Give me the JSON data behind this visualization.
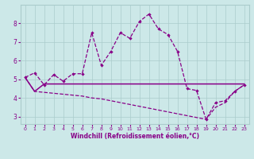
{
  "xlabel": "Windchill (Refroidissement éolien,°C)",
  "bg_color": "#cce8e8",
  "grid_color": "#aacccc",
  "line_color": "#880088",
  "x_ticks": [
    0,
    1,
    2,
    3,
    4,
    5,
    6,
    7,
    8,
    9,
    10,
    11,
    12,
    13,
    14,
    15,
    16,
    17,
    18,
    19,
    20,
    21,
    22,
    23
  ],
  "y_ticks": [
    3,
    4,
    5,
    6,
    7,
    8
  ],
  "xlim": [
    -0.5,
    23.5
  ],
  "ylim": [
    2.6,
    9.0
  ],
  "line1_x": [
    0,
    1,
    2,
    3,
    4,
    5,
    6,
    7,
    8,
    9,
    10,
    11,
    12,
    13,
    14,
    15,
    16,
    17,
    18,
    19,
    20,
    21,
    22,
    23
  ],
  "line1_y": [
    5.1,
    5.35,
    4.7,
    5.25,
    4.9,
    5.3,
    5.3,
    7.5,
    5.75,
    6.5,
    7.5,
    7.2,
    8.1,
    8.5,
    7.7,
    7.4,
    6.5,
    4.5,
    4.4,
    2.85,
    3.75,
    3.85,
    4.35,
    4.7
  ],
  "line2_x": [
    0,
    1,
    2,
    3,
    4,
    5,
    6,
    7,
    8,
    9,
    10,
    11,
    12,
    13,
    14,
    15,
    16,
    17,
    18,
    19,
    20,
    21,
    22,
    23
  ],
  "line2_y": [
    5.1,
    4.35,
    4.75,
    4.75,
    4.75,
    4.75,
    4.75,
    4.75,
    4.75,
    4.75,
    4.75,
    4.75,
    4.75,
    4.75,
    4.75,
    4.75,
    4.75,
    4.75,
    4.75,
    4.75,
    4.75,
    4.75,
    4.75,
    4.75
  ],
  "line3_x": [
    0,
    1,
    2,
    3,
    4,
    5,
    6,
    7,
    8,
    9,
    10,
    11,
    12,
    13,
    14,
    15,
    16,
    17,
    18,
    19,
    20,
    21,
    22,
    23
  ],
  "line3_y": [
    5.1,
    4.35,
    4.3,
    4.25,
    4.2,
    4.15,
    4.1,
    4.0,
    3.95,
    3.85,
    3.75,
    3.65,
    3.55,
    3.45,
    3.35,
    3.25,
    3.15,
    3.05,
    2.95,
    2.85,
    3.5,
    3.75,
    4.35,
    4.7
  ]
}
